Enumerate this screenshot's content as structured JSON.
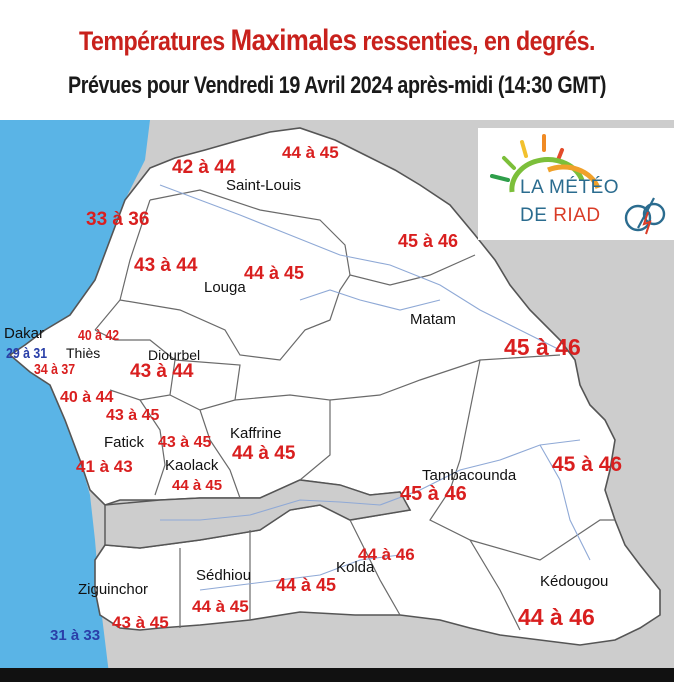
{
  "title": {
    "prefix": "Températures",
    "highlight": "Maximales",
    "suffix": "ressenties, en degrés."
  },
  "subtitle": "Prévues pour Vendredi 19 Avril 2024 après-midi (14:30 GMT)",
  "logo": {
    "line1": "LA MÉTÉO",
    "line2_a": "DE",
    "line2_b": "RIAD"
  },
  "colors": {
    "sea": "#5ab4e6",
    "land": "#ffffff",
    "neighbor": "#cdcdcd",
    "river": "#8fa9d6",
    "border": "#555555",
    "hot": "#d91f1f",
    "cool": "#2a3fa8"
  },
  "cities": {
    "saint_louis": "Saint-Louis",
    "louga": "Louga",
    "matam": "Matam",
    "dakar": "Dakar",
    "thies": "Thiès",
    "diourbel": "Diourbel",
    "fatick": "Fatick",
    "kaffrine": "Kaffrine",
    "kaolack": "Kaolack",
    "tambacounda": "Tambacounda",
    "ziguinchor": "Ziguinchor",
    "sedhiou": "Sédhiou",
    "kolda": "Kolda",
    "kedougou": "Kédougou"
  },
  "temps": {
    "saint_louis_coast": "42 à 44",
    "saint_louis_north": "44 à 45",
    "sea_north": "33 à 36",
    "louga_west": "43 à 44",
    "louga_east": "44 à 45",
    "matam_north": "45 à 46",
    "matam_east": "45 à 46",
    "dakar": "29 à 31",
    "thies_north": "40 à 42",
    "thies_coast": "34 à 37",
    "diourbel": "43 à 44",
    "mbour": "40 à 44",
    "fatick_north": "43 à 45",
    "fatick_east": "43 à 45",
    "kaffrine": "44 à 45",
    "fatick_south": "41 à 43",
    "kaolack": "44 à 45",
    "tamba_east": "45 à 46",
    "tamba_center": "45 à 46",
    "kolda_north": "44 à 46",
    "kolda_west": "44 à 45",
    "sedhiou": "44 à 45",
    "ziguinchor": "43 à 45",
    "cap_skirring": "31 à 33",
    "kedougou": "44 à 46"
  }
}
